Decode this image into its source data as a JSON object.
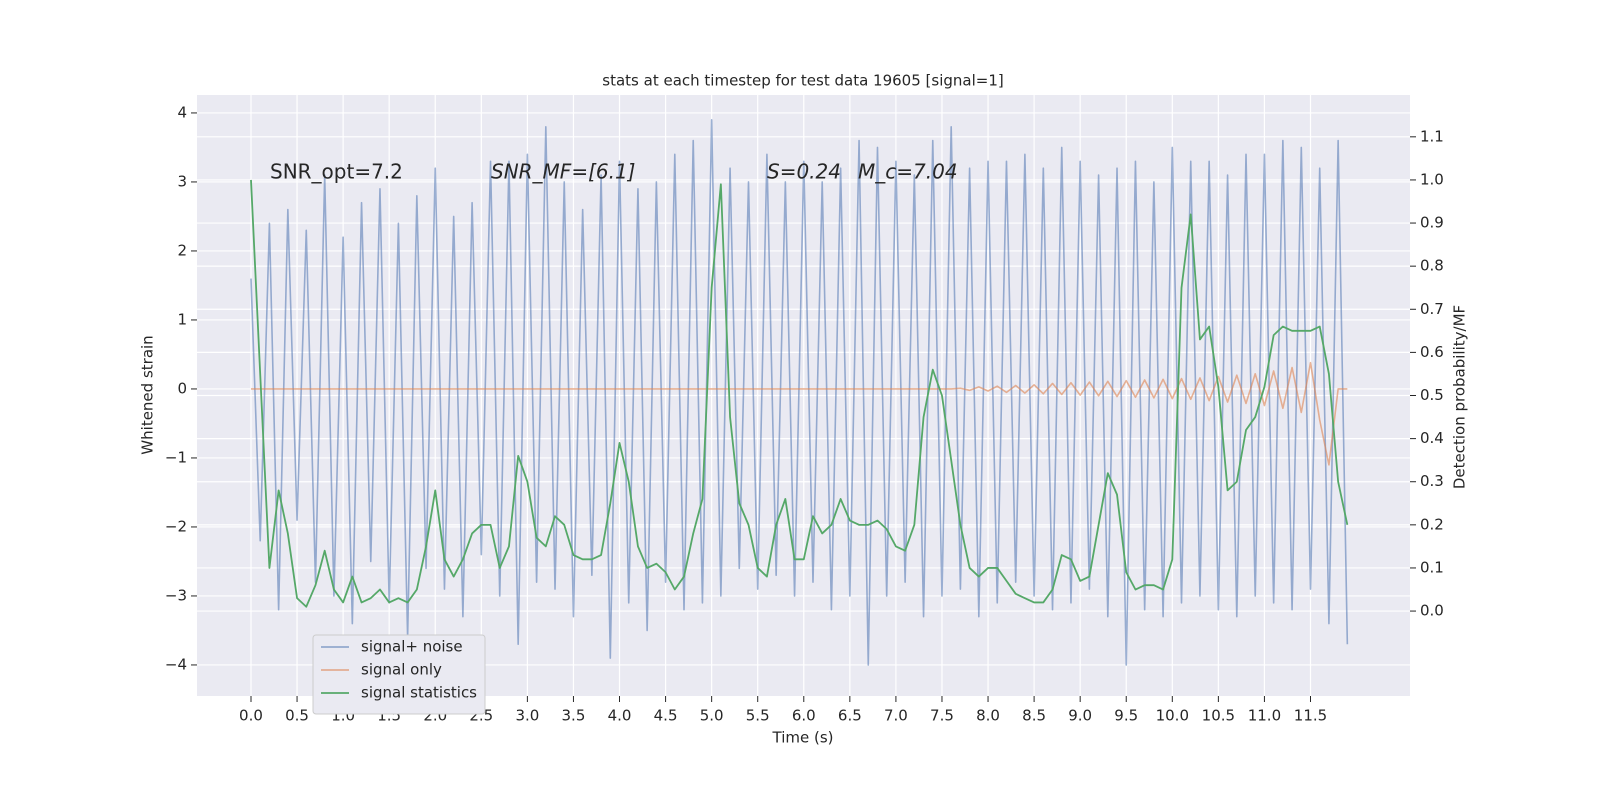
{
  "chart_data": {
    "type": "line",
    "title": "stats at each timestep for test data 19605 [signal=1]",
    "xlabel": "Time (s)",
    "ylabel": "Whitened strain",
    "y2label": "Detection probability/MF",
    "annotations": [
      "SNR_opt=7.2",
      "SNR_MF=[6.1]",
      "S=0.24",
      "M_c=7.04"
    ],
    "grid": true,
    "legend": "lower left",
    "xlim": [
      -0.586,
      12.58
    ],
    "ylim": [
      -4.45,
      4.26
    ],
    "y2lim": [
      -0.197,
      1.197
    ],
    "xticks": [
      {
        "value": 0,
        "label": "0.0"
      },
      0.5,
      {
        "value": 1,
        "label": "1.0"
      },
      1.5,
      {
        "value": 2,
        "label": "2.0"
      },
      2.5,
      {
        "value": 3,
        "label": "3.0"
      },
      3.5,
      {
        "value": 4,
        "label": "4.0"
      },
      4.5,
      {
        "value": 5,
        "label": "5.0"
      },
      5.5,
      {
        "value": 6,
        "label": "6.0"
      },
      6.5,
      {
        "value": 7,
        "label": "7.0"
      },
      7.5,
      {
        "value": 8,
        "label": "8.0"
      },
      8.5,
      {
        "value": 9,
        "label": "9.0"
      },
      9.5,
      {
        "value": 10,
        "label": "10.0"
      },
      10.5,
      {
        "value": 11,
        "label": "11.0"
      },
      11.5
    ],
    "yticks": [
      {
        "value": -4,
        "label": "−4"
      },
      {
        "value": -3,
        "label": "−3"
      },
      {
        "value": -2,
        "label": "−2"
      },
      {
        "value": -1,
        "label": "−1"
      },
      0,
      1,
      2,
      3,
      4
    ],
    "y2ticks": [
      {
        "value": 0,
        "label": "0.0"
      },
      0.1,
      0.2,
      0.3,
      0.4,
      0.5,
      0.6,
      0.7,
      0.8,
      0.9,
      {
        "value": 1,
        "label": "1.0"
      },
      1.1
    ],
    "x": [
      0,
      0.1,
      0.2,
      0.3,
      0.4,
      0.5,
      0.6,
      0.7,
      0.8,
      0.9,
      1,
      1.1,
      1.2,
      1.3,
      1.4,
      1.5,
      1.6,
      1.7,
      1.8,
      1.9,
      2,
      2.1,
      2.2,
      2.3,
      2.4,
      2.5,
      2.6,
      2.7,
      2.8,
      2.9,
      3,
      3.1,
      3.2,
      3.3,
      3.4,
      3.5,
      3.6,
      3.7,
      3.8,
      3.9,
      4,
      4.1,
      4.2,
      4.3,
      4.4,
      4.5,
      4.6,
      4.7,
      4.8,
      4.9,
      5,
      5.1,
      5.2,
      5.3,
      5.4,
      5.5,
      5.6,
      5.7,
      5.8,
      5.9,
      6,
      6.1,
      6.2,
      6.3,
      6.4,
      6.5,
      6.6,
      6.7,
      6.8,
      6.9,
      7,
      7.1,
      7.2,
      7.3,
      7.4,
      7.5,
      7.6,
      7.7,
      7.8,
      7.9,
      8,
      8.1,
      8.2,
      8.3,
      8.4,
      8.5,
      8.6,
      8.7,
      8.8,
      8.9,
      9,
      9.1,
      9.2,
      9.3,
      9.4,
      9.5,
      9.6,
      9.7,
      9.8,
      9.9,
      10,
      10.1,
      10.2,
      10.3,
      10.4,
      10.5,
      10.6,
      10.7,
      10.8,
      10.9,
      11,
      11.1,
      11.2,
      11.3,
      11.4,
      11.5,
      11.6,
      11.7,
      11.8,
      11.9
    ],
    "series": [
      {
        "name": "signal+ noise",
        "color": "#4c72b0",
        "values": [
          1.6,
          -2.2,
          2.4,
          -3.2,
          2.6,
          -1.9,
          2.3,
          -2.8,
          3.1,
          -3.0,
          2.2,
          -3.4,
          2.7,
          -2.5,
          2.9,
          -3.1,
          2.4,
          -3.6,
          2.8,
          -2.6,
          3.2,
          -2.9,
          2.5,
          -3.3,
          2.7,
          -2.4,
          3.3,
          -3.0,
          3.3,
          -3.7,
          3.4,
          -2.8,
          3.8,
          -2.9,
          3.0,
          -3.3,
          2.6,
          -2.7,
          3.1,
          -3.9,
          3.3,
          -3.1,
          2.9,
          -3.5,
          3.0,
          -2.8,
          3.4,
          -3.2,
          3.6,
          -3.1,
          3.9,
          -3.0,
          3.2,
          -2.6,
          3.0,
          -2.9,
          3.4,
          -2.7,
          3.0,
          -3.0,
          3.3,
          -2.8,
          3.0,
          -3.2,
          3.2,
          -3.0,
          3.6,
          -4.0,
          3.5,
          -3.0,
          3.3,
          -2.8,
          3.1,
          -3.3,
          3.6,
          -3.0,
          3.8,
          -2.9,
          3.2,
          -3.3,
          3.3,
          -3.1,
          3.3,
          -2.8,
          3.4,
          -3.0,
          3.2,
          -3.2,
          3.5,
          -3.1,
          3.3,
          -2.9,
          3.1,
          -3.3,
          3.2,
          -4.0,
          3.3,
          -3.2,
          3.0,
          -3.3,
          3.5,
          -3.1,
          3.3,
          -3.0,
          3.3,
          -3.2,
          3.1,
          -3.3,
          3.4,
          -3.0,
          3.4,
          -3.1,
          3.6,
          -3.2,
          3.5,
          -2.9,
          3.2,
          -3.4,
          3.6,
          -3.7
        ]
      },
      {
        "name": "signal only",
        "color": "#dd8452",
        "values": [
          0,
          0,
          0,
          0,
          0,
          0,
          0,
          0,
          0,
          0,
          0,
          0,
          0,
          0,
          0,
          0,
          0,
          0,
          0,
          0,
          0,
          0,
          0,
          0,
          0,
          0,
          0,
          0,
          0,
          0,
          0,
          0,
          0,
          0,
          0,
          0,
          0,
          0,
          0,
          0,
          0,
          0,
          0,
          0,
          0,
          0,
          0,
          0,
          0,
          0,
          0,
          0,
          0,
          0,
          0,
          0,
          0,
          0,
          0,
          0,
          0,
          0,
          0,
          0,
          0,
          0,
          0,
          0,
          0,
          0,
          0,
          0,
          0,
          0,
          0,
          0,
          0,
          0.01,
          -0.02,
          0.03,
          -0.03,
          0.04,
          -0.05,
          0.05,
          -0.06,
          0.06,
          -0.07,
          0.08,
          -0.08,
          0.09,
          -0.09,
          0.1,
          -0.1,
          0.11,
          -0.11,
          0.12,
          -0.12,
          0.13,
          -0.13,
          0.14,
          -0.14,
          0.15,
          -0.15,
          0.16,
          -0.17,
          0.18,
          -0.19,
          0.2,
          -0.21,
          0.22,
          -0.24,
          0.26,
          -0.28,
          0.31,
          -0.34,
          0.38,
          -0.45,
          -1.1,
          0,
          0
        ]
      },
      {
        "name": "signal statistics",
        "color": "#55a868",
        "axis": "y2",
        "values": [
          1.0,
          0.55,
          0.1,
          0.28,
          0.18,
          0.03,
          0.01,
          0.06,
          0.14,
          0.05,
          0.02,
          0.08,
          0.02,
          0.03,
          0.05,
          0.02,
          0.03,
          0.02,
          0.05,
          0.15,
          0.28,
          0.12,
          0.08,
          0.12,
          0.18,
          0.2,
          0.2,
          0.1,
          0.15,
          0.36,
          0.3,
          0.17,
          0.15,
          0.22,
          0.2,
          0.13,
          0.12,
          0.12,
          0.13,
          0.25,
          0.39,
          0.3,
          0.15,
          0.1,
          0.11,
          0.09,
          0.05,
          0.08,
          0.18,
          0.26,
          0.75,
          0.99,
          0.45,
          0.25,
          0.2,
          0.1,
          0.08,
          0.2,
          0.26,
          0.12,
          0.12,
          0.22,
          0.18,
          0.2,
          0.26,
          0.21,
          0.2,
          0.2,
          0.21,
          0.19,
          0.15,
          0.14,
          0.2,
          0.45,
          0.56,
          0.5,
          0.35,
          0.2,
          0.1,
          0.08,
          0.1,
          0.1,
          0.07,
          0.04,
          0.03,
          0.02,
          0.02,
          0.05,
          0.13,
          0.12,
          0.07,
          0.08,
          0.2,
          0.32,
          0.27,
          0.09,
          0.05,
          0.06,
          0.06,
          0.05,
          0.12,
          0.75,
          0.92,
          0.63,
          0.66,
          0.52,
          0.28,
          0.3,
          0.42,
          0.45,
          0.52,
          0.64,
          0.66,
          0.65,
          0.65,
          0.65,
          0.66,
          0.55,
          0.3,
          0.2
        ]
      }
    ]
  }
}
